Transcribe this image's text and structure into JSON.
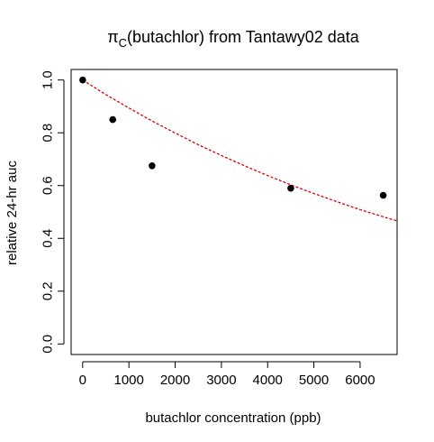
{
  "chart_data": {
    "type": "scatter",
    "title": {
      "prefix": "π",
      "subscript": "C",
      "rest": "(butachlor) from Tantawy02 data"
    },
    "xlabel": "butachlor concentration (ppb)",
    "ylabel": "relative 24-hr auc",
    "xlim": [
      -250,
      6800
    ],
    "ylim": [
      -0.04,
      1.04
    ],
    "xticks": [
      0,
      1000,
      2000,
      3000,
      4000,
      5000,
      6000
    ],
    "xtick_labels": [
      "0",
      "1000",
      "2000",
      "3000",
      "4000",
      "5000",
      "6000"
    ],
    "yticks": [
      0.0,
      0.2,
      0.4,
      0.6,
      0.8,
      1.0
    ],
    "ytick_labels": [
      "0.0",
      "0.2",
      "0.4",
      "0.6",
      "0.8",
      "1.0"
    ],
    "grid": false,
    "series": [
      {
        "kind": "points",
        "color": "#000000",
        "x": [
          0,
          650,
          1500,
          4500,
          6500
        ],
        "y": [
          1.0,
          0.85,
          0.675,
          0.59,
          0.563
        ]
      },
      {
        "kind": "fitted-curve",
        "color": "#e00000",
        "style": "dashed",
        "x": [
          0,
          500,
          1000,
          1500,
          2000,
          2500,
          3000,
          3500,
          4000,
          4500,
          5000,
          5500,
          6000,
          6500,
          6800
        ],
        "y": [
          1.0,
          0.945,
          0.894,
          0.845,
          0.799,
          0.755,
          0.714,
          0.675,
          0.638,
          0.603,
          0.57,
          0.539,
          0.509,
          0.482,
          0.466
        ]
      }
    ]
  }
}
